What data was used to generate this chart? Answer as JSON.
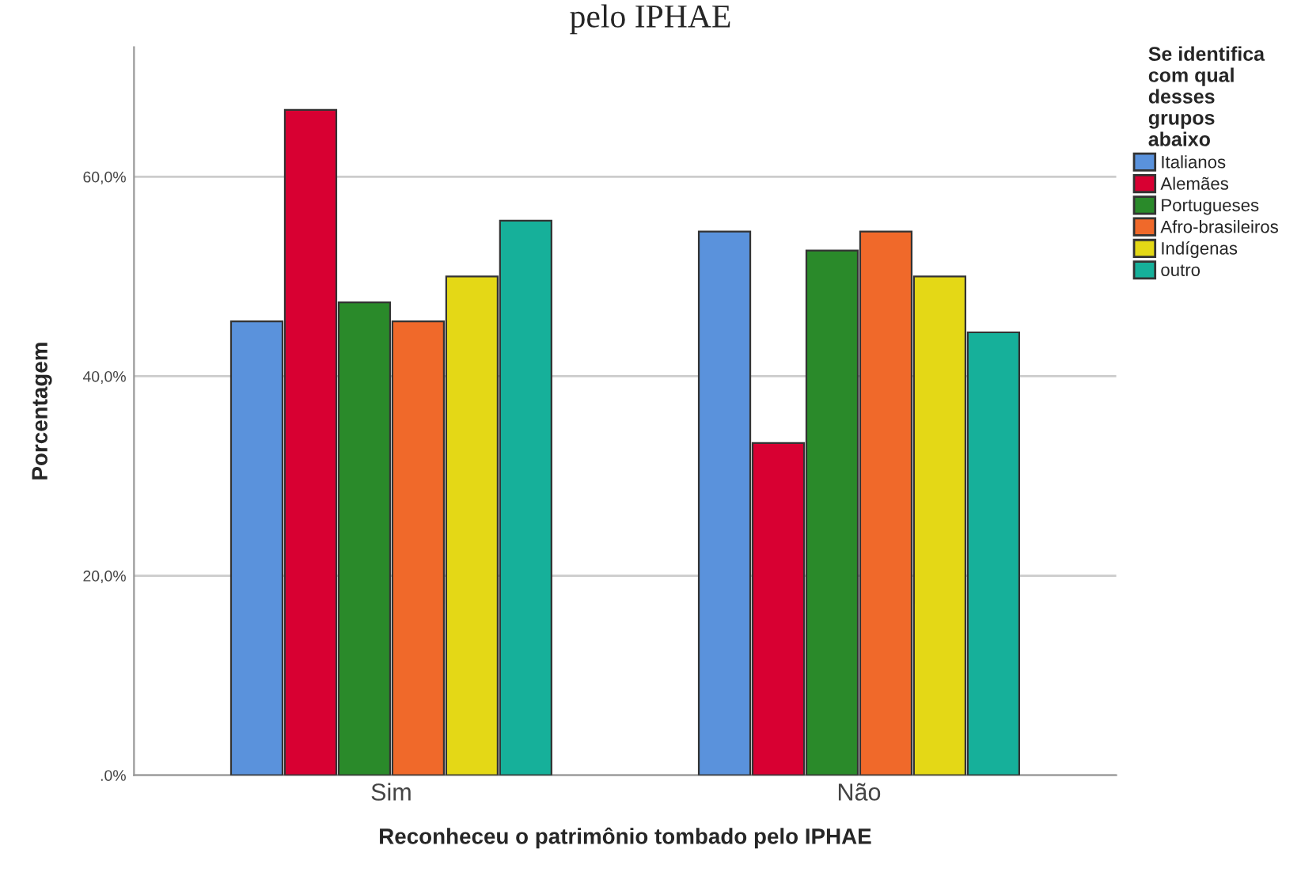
{
  "chart_data": {
    "type": "bar",
    "title": "pelo IPHAE",
    "xlabel": "Reconheceu o patrimônio tombado pelo IPHAE",
    "ylabel": "Porcentagem",
    "legend_title": "Se identifica\ncom qual\ndesses\ngrupos\nabaixo",
    "categories": [
      "Sim",
      "Não"
    ],
    "series": [
      {
        "name": "Italianos",
        "color": "#5a92dc",
        "values": [
          45.5,
          54.5
        ]
      },
      {
        "name": "Alemães",
        "color": "#d80032",
        "values": [
          66.7,
          33.3
        ]
      },
      {
        "name": "Portugueses",
        "color": "#2a8a2a",
        "values": [
          47.4,
          52.6
        ]
      },
      {
        "name": "Afro-brasileiros",
        "color": "#f0692a",
        "values": [
          45.5,
          54.5
        ]
      },
      {
        "name": "Indígenas",
        "color": "#e4d816",
        "values": [
          50.0,
          50.0
        ]
      },
      {
        "name": "outro",
        "color": "#16b09a",
        "values": [
          55.6,
          44.4
        ]
      }
    ],
    "ylim": [
      0,
      73
    ],
    "yticks": [
      {
        "value": 0,
        "label": ".0%"
      },
      {
        "value": 20,
        "label": "20,0%"
      },
      {
        "value": 40,
        "label": "40,0%"
      },
      {
        "value": 60,
        "label": "60,0%"
      }
    ],
    "grid": "y",
    "legend": "top right"
  }
}
